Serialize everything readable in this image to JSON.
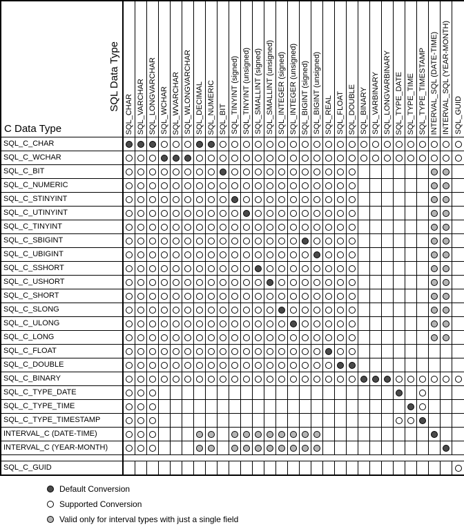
{
  "chart_data": {
    "type": "table",
    "col_axis_label": "SQL Data Type",
    "row_axis_label": "C Data Type",
    "columns": [
      "SQL_CHAR",
      "SQL_VARCHAR",
      "SQL_LONGVARCHAR",
      "SQL_WCHAR",
      "SQL_WVARCHAR",
      "SQL_WLONGVARCHAR",
      "SQL_DECIMAL",
      "SQL_NUMERIC",
      "SQL_BIT",
      "SQL_TINYINT (signed)",
      "SQL_TINYINT (unsigned)",
      "SQL_SMALLINT (signed)",
      "SQL_SMALLINT (unsigned)",
      "SQL_INTEGER (signed)",
      "SQL_INTEGER (unsigned)",
      "SQL_BIGINT (signed)",
      "SQL_BIGINT (unsigned)",
      "SQL_REAL",
      "SQL_FLOAT",
      "SQL_DOUBLE",
      "SQL_BINARY",
      "SQL_VARBINARY",
      "SQL_LONGVARBINARY",
      "SQL_TYPE_DATE",
      "SQL_TYPE_TIME",
      "SQL_TYPE_TIMESTAMP",
      "INTERVAL_SQL (DATE-TIME)",
      "INTERVAL_SQL (YEAR-MONTH)",
      "SQL_GUID"
    ],
    "cell_codes": {
      "D": "default conversion",
      "S": "supported conversion",
      "I": "valid only for interval types with just a single field",
      ".": "conversion not supported"
    },
    "rows": [
      {
        "label": "SQL_C_CHAR",
        "cells": "DDDSSSDDSSSSSSSSSSSSSSSSSSSSS"
      },
      {
        "label": "SQL_C_WCHAR",
        "cells": "SSSDDDSSSSSSSSSSSSSSSSSSSSSSS"
      },
      {
        "label": "SQL_C_BIT",
        "cells": "SSSSSSSSDSSSSSSSSSSS......II."
      },
      {
        "label": "SQL_C_NUMERIC",
        "cells": "SSSSSSSSSSSSSSSSSSSS......II."
      },
      {
        "label": "SQL_C_STINYINT",
        "cells": "SSSSSSSSSDSSSSSSSSSS......II."
      },
      {
        "label": "SQL_C_UTINYINT",
        "cells": "SSSSSSSSSSDSSSSSSSSS......II."
      },
      {
        "label": "SQL_C_TINYINT",
        "cells": "SSSSSSSSSSSSSSSSSSSS......II."
      },
      {
        "label": "SQL_C_SBIGINT",
        "cells": "SSSSSSSSSSSSSSSDSSSS......II."
      },
      {
        "label": "SQL_C_UBIGINT",
        "cells": "SSSSSSSSSSSSSSSSDSSS......II."
      },
      {
        "label": "SQL_C_SSHORT",
        "cells": "SSSSSSSSSSSDSSSSSSSS......II."
      },
      {
        "label": "SQL_C_USHORT",
        "cells": "SSSSSSSSSSSSDSSSSSSS......II."
      },
      {
        "label": "SQL_C_SHORT",
        "cells": "SSSSSSSSSSSSSSSSSSSS......II."
      },
      {
        "label": "SQL_C_SLONG",
        "cells": "SSSSSSSSSSSSSDSSSSSS......II."
      },
      {
        "label": "SQL_C_ULONG",
        "cells": "SSSSSSSSSSSSSSDSSSSS......II."
      },
      {
        "label": "SQL_C_LONG",
        "cells": "SSSSSSSSSSSSSSSSSSSS......II."
      },
      {
        "label": "SQL_C_FLOAT",
        "cells": "SSSSSSSSSSSSSSSSSDSS........."
      },
      {
        "label": "SQL_C_DOUBLE",
        "cells": "SSSSSSSSSSSSSSSSSSDD........."
      },
      {
        "label": "SQL_C_BINARY",
        "cells": "SSSSSSSSSSSSSSSSSSSSDDDSSSSSS"
      },
      {
        "label": "SQL_C_TYPE_DATE",
        "cells": "SSS....................D.S..."
      },
      {
        "label": "SQL_C_TYPE_TIME",
        "cells": "SSS.....................DS..."
      },
      {
        "label": "SQL_C_TYPE_TIMESTAMP",
        "cells": "SSS....................SSD..."
      },
      {
        "label": "INTERVAL_C (DATE-TIME)",
        "cells": "SSS...II.IIIIIIII.........D.."
      },
      {
        "label": "INTERVAL_C (YEAR-MONTH)",
        "cells": "SSS...II.IIIIIIII..........D."
      },
      {
        "label": "SQL_C_GUID",
        "cells": "............................S"
      }
    ],
    "legend": [
      {
        "symbol": "D",
        "label": "Default Conversion"
      },
      {
        "symbol": "S",
        "label": "Supported Conversion"
      },
      {
        "symbol": "I",
        "label": "Valid only for interval types with just a single field"
      }
    ]
  },
  "colors": {
    "default_fill": "#4a4a4a",
    "supported_fill": "#ffffff",
    "interval_fill": "#b5b5b5",
    "grid_line": "#000000"
  }
}
